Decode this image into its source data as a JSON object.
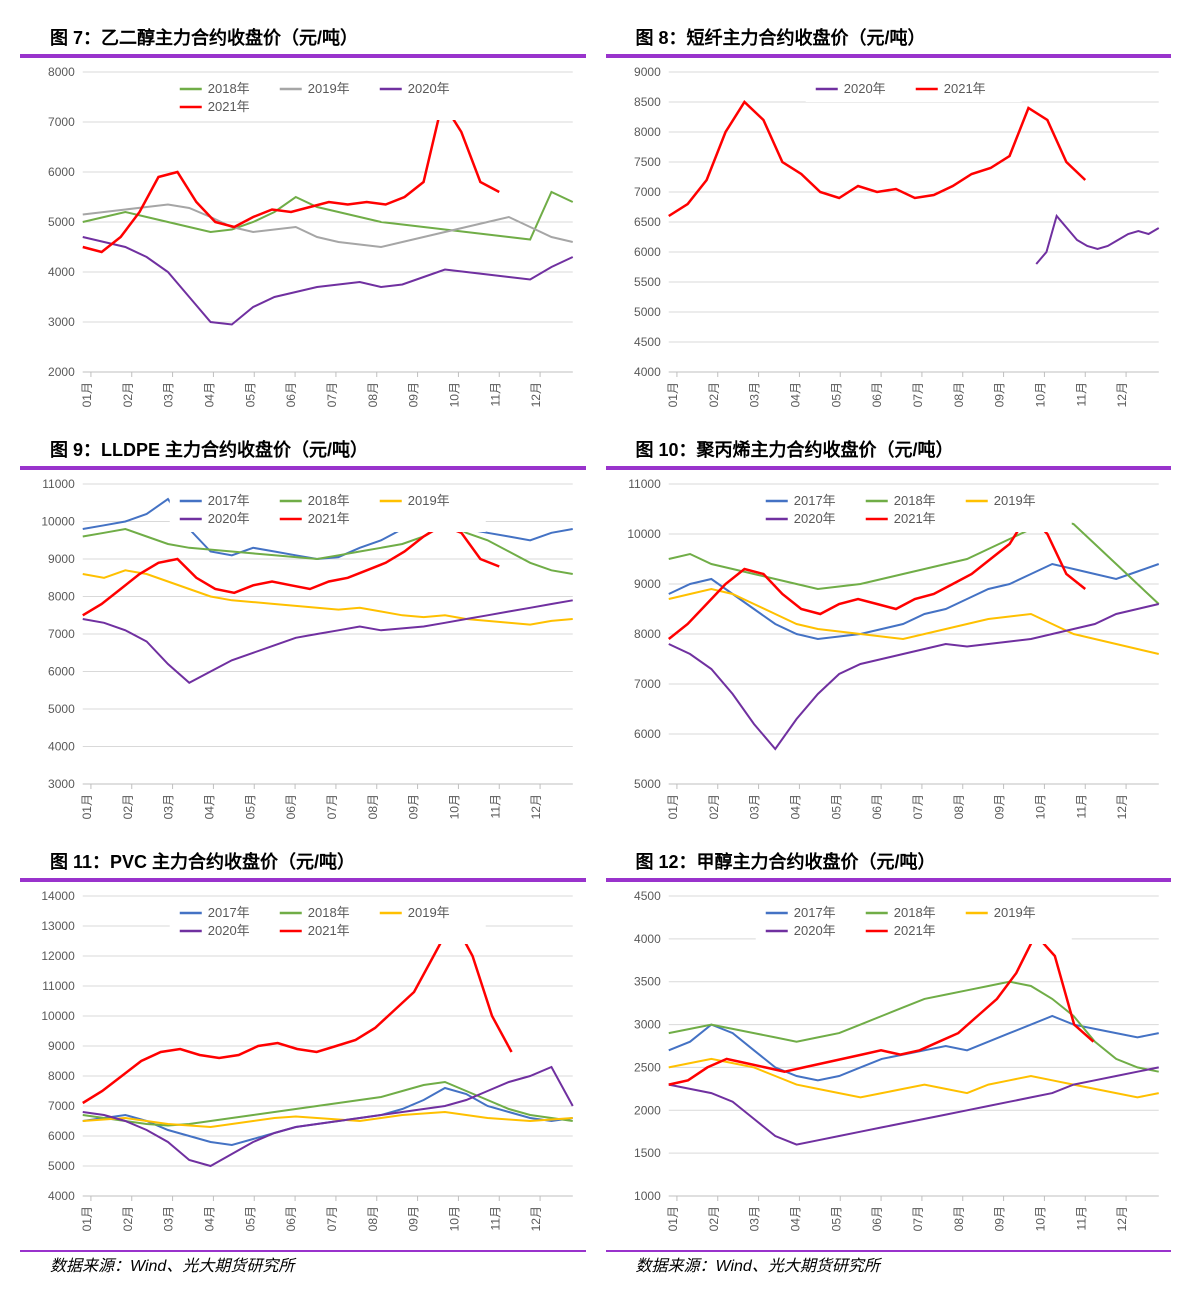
{
  "months": [
    "01月",
    "02月",
    "03月",
    "04月",
    "05月",
    "06月",
    "07月",
    "08月",
    "09月",
    "10月",
    "11月",
    "12月"
  ],
  "colors": {
    "y2017": "#4472c4",
    "y2018": "#70ad47",
    "y2019": "#ffc000",
    "y2020": "#7030a0",
    "y2021": "#ff0000",
    "y2019_grey": "#a6a6a6",
    "grid": "#d9d9d9",
    "axis": "#bfbfbf",
    "text": "#595959",
    "underline": "#9933cc"
  },
  "source_left": "数据来源：Wind、光大期货研究所",
  "source_right": "数据来源：Wind、光大期货研究所",
  "charts": [
    {
      "id": "c7",
      "title": "图 7：乙二醇主力合约收盘价（元/吨）",
      "ylim": [
        2000,
        8000
      ],
      "ystep": 1000,
      "legend": [
        {
          "label": "2018年",
          "color": "y2018"
        },
        {
          "label": "2019年",
          "color": "y2019_grey"
        },
        {
          "label": "2020年",
          "color": "y2020"
        },
        {
          "label": "2021年",
          "color": "y2021"
        }
      ],
      "series": {
        "y2018": {
          "start": 0,
          "end": 12,
          "data": [
            5000,
            5100,
            5200,
            5100,
            5000,
            4900,
            4800,
            4850,
            5000,
            5200,
            5500,
            5300,
            5200,
            5100,
            5000,
            4950,
            4900,
            4850,
            4800,
            4750,
            4700,
            4650,
            5600,
            5400
          ]
        },
        "y2019_grey": {
          "start": 0,
          "end": 12,
          "data": [
            5150,
            5200,
            5250,
            5300,
            5350,
            5280,
            5100,
            4900,
            4800,
            4850,
            4900,
            4700,
            4600,
            4550,
            4500,
            4600,
            4700,
            4800,
            4900,
            5000,
            5100,
            4900,
            4700,
            4600
          ]
        },
        "y2020": {
          "start": 0,
          "end": 12,
          "data": [
            4700,
            4600,
            4500,
            4300,
            4000,
            3500,
            3000,
            2950,
            3300,
            3500,
            3600,
            3700,
            3750,
            3800,
            3700,
            3750,
            3900,
            4050,
            4000,
            3950,
            3900,
            3850,
            4100,
            4300
          ]
        },
        "y2021": {
          "start": 0,
          "end": 10.2,
          "data": [
            4500,
            4400,
            4700,
            5200,
            5900,
            6000,
            5400,
            5000,
            4900,
            5100,
            5250,
            5200,
            5300,
            5400,
            5350,
            5400,
            5350,
            5500,
            5800,
            7400,
            6800,
            5800,
            5600
          ]
        }
      }
    },
    {
      "id": "c8",
      "title": "图 8：短纤主力合约收盘价（元/吨）",
      "ylim": [
        4000,
        9000
      ],
      "ystep": 500,
      "legend": [
        {
          "label": "2020年",
          "color": "y2020"
        },
        {
          "label": "2021年",
          "color": "y2021"
        }
      ],
      "series": {
        "y2020": {
          "start": 9,
          "end": 12,
          "data": [
            5800,
            6000,
            6600,
            6400,
            6200,
            6100,
            6050,
            6100,
            6200,
            6300,
            6350,
            6300,
            6400
          ]
        },
        "y2021": {
          "start": 0,
          "end": 10.2,
          "data": [
            6600,
            6800,
            7200,
            8000,
            8500,
            8200,
            7500,
            7300,
            7000,
            6900,
            7100,
            7000,
            7050,
            6900,
            6950,
            7100,
            7300,
            7400,
            7600,
            8400,
            8200,
            7500,
            7200
          ]
        }
      }
    },
    {
      "id": "c9",
      "title": "图 9：LLDPE 主力合约收盘价（元/吨）",
      "ylim": [
        3000,
        11000
      ],
      "ystep": 1000,
      "legend": [
        {
          "label": "2017年",
          "color": "y2017"
        },
        {
          "label": "2018年",
          "color": "y2018"
        },
        {
          "label": "2019年",
          "color": "y2019"
        },
        {
          "label": "2020年",
          "color": "y2020"
        },
        {
          "label": "2021年",
          "color": "y2021"
        }
      ],
      "series": {
        "y2017": {
          "start": 0,
          "end": 12,
          "data": [
            9800,
            9900,
            10000,
            10200,
            10600,
            9800,
            9200,
            9100,
            9300,
            9200,
            9100,
            9000,
            9050,
            9300,
            9500,
            9800,
            10000,
            10100,
            9800,
            9700,
            9600,
            9500,
            9700,
            9800
          ]
        },
        "y2018": {
          "start": 0,
          "end": 12,
          "data": [
            9600,
            9700,
            9800,
            9600,
            9400,
            9300,
            9250,
            9200,
            9150,
            9100,
            9050,
            9000,
            9100,
            9200,
            9300,
            9400,
            9600,
            10000,
            9700,
            9500,
            9200,
            8900,
            8700,
            8600
          ]
        },
        "y2019": {
          "start": 0,
          "end": 12,
          "data": [
            8600,
            8500,
            8700,
            8600,
            8400,
            8200,
            8000,
            7900,
            7850,
            7800,
            7750,
            7700,
            7650,
            7700,
            7600,
            7500,
            7450,
            7500,
            7400,
            7350,
            7300,
            7250,
            7350,
            7400
          ]
        },
        "y2020": {
          "start": 0,
          "end": 12,
          "data": [
            7400,
            7300,
            7100,
            6800,
            6200,
            5700,
            6000,
            6300,
            6500,
            6700,
            6900,
            7000,
            7100,
            7200,
            7100,
            7150,
            7200,
            7300,
            7400,
            7500,
            7600,
            7700,
            7800,
            7900
          ]
        },
        "y2021": {
          "start": 0,
          "end": 10.2,
          "data": [
            7500,
            7800,
            8200,
            8600,
            8900,
            9000,
            8500,
            8200,
            8100,
            8300,
            8400,
            8300,
            8200,
            8400,
            8500,
            8700,
            8900,
            9200,
            9600,
            9900,
            9700,
            9000,
            8800
          ]
        }
      }
    },
    {
      "id": "c10",
      "title": "图 10：聚丙烯主力合约收盘价（元/吨）",
      "ylim": [
        5000,
        11000
      ],
      "ystep": 1000,
      "legend": [
        {
          "label": "2017年",
          "color": "y2017"
        },
        {
          "label": "2018年",
          "color": "y2018"
        },
        {
          "label": "2019年",
          "color": "y2019"
        },
        {
          "label": "2020年",
          "color": "y2020"
        },
        {
          "label": "2021年",
          "color": "y2021"
        }
      ],
      "series": {
        "y2017": {
          "start": 0,
          "end": 12,
          "data": [
            8800,
            9000,
            9100,
            8800,
            8500,
            8200,
            8000,
            7900,
            7950,
            8000,
            8100,
            8200,
            8400,
            8500,
            8700,
            8900,
            9000,
            9200,
            9400,
            9300,
            9200,
            9100,
            9250,
            9400
          ]
        },
        "y2018": {
          "start": 0,
          "end": 12,
          "data": [
            9500,
            9600,
            9400,
            9300,
            9200,
            9100,
            9000,
            8900,
            8950,
            9000,
            9100,
            9200,
            9300,
            9400,
            9500,
            9700,
            9900,
            10100,
            10300,
            10200,
            9800,
            9400,
            9000,
            8600
          ]
        },
        "y2019": {
          "start": 0,
          "end": 12,
          "data": [
            8700,
            8800,
            8900,
            8800,
            8600,
            8400,
            8200,
            8100,
            8050,
            8000,
            7950,
            7900,
            8000,
            8100,
            8200,
            8300,
            8350,
            8400,
            8200,
            8000,
            7900,
            7800,
            7700,
            7600
          ]
        },
        "y2020": {
          "start": 0,
          "end": 12,
          "data": [
            7800,
            7600,
            7300,
            6800,
            6200,
            5700,
            6300,
            6800,
            7200,
            7400,
            7500,
            7600,
            7700,
            7800,
            7750,
            7800,
            7850,
            7900,
            8000,
            8100,
            8200,
            8400,
            8500,
            8600
          ]
        },
        "y2021": {
          "start": 0,
          "end": 10.2,
          "data": [
            7900,
            8200,
            8600,
            9000,
            9300,
            9200,
            8800,
            8500,
            8400,
            8600,
            8700,
            8600,
            8500,
            8700,
            8800,
            9000,
            9200,
            9500,
            9800,
            10400,
            10000,
            9200,
            8900
          ]
        }
      }
    },
    {
      "id": "c11",
      "title": "图 11：PVC 主力合约收盘价（元/吨）",
      "ylim": [
        4000,
        14000
      ],
      "ystep": 1000,
      "legend": [
        {
          "label": "2017年",
          "color": "y2017"
        },
        {
          "label": "2018年",
          "color": "y2018"
        },
        {
          "label": "2019年",
          "color": "y2019"
        },
        {
          "label": "2020年",
          "color": "y2020"
        },
        {
          "label": "2021年",
          "color": "y2021"
        }
      ],
      "series": {
        "y2017": {
          "start": 0,
          "end": 12,
          "data": [
            6500,
            6600,
            6700,
            6500,
            6200,
            6000,
            5800,
            5700,
            5900,
            6100,
            6300,
            6400,
            6500,
            6600,
            6700,
            6900,
            7200,
            7600,
            7400,
            7000,
            6800,
            6600,
            6500,
            6600
          ]
        },
        "y2018": {
          "start": 0,
          "end": 12,
          "data": [
            6700,
            6600,
            6500,
            6400,
            6350,
            6400,
            6500,
            6600,
            6700,
            6800,
            6900,
            7000,
            7100,
            7200,
            7300,
            7500,
            7700,
            7800,
            7500,
            7200,
            6900,
            6700,
            6600,
            6500
          ]
        },
        "y2019": {
          "start": 0,
          "end": 12,
          "data": [
            6500,
            6550,
            6600,
            6500,
            6400,
            6350,
            6300,
            6400,
            6500,
            6600,
            6650,
            6600,
            6550,
            6500,
            6600,
            6700,
            6750,
            6800,
            6700,
            6600,
            6550,
            6500,
            6550,
            6600
          ]
        },
        "y2020": {
          "start": 0,
          "end": 12,
          "data": [
            6800,
            6700,
            6500,
            6200,
            5800,
            5200,
            5000,
            5400,
            5800,
            6100,
            6300,
            6400,
            6500,
            6600,
            6700,
            6800,
            6900,
            7000,
            7200,
            7500,
            7800,
            8000,
            8300,
            7000
          ]
        },
        "y2021": {
          "start": 0,
          "end": 10.5,
          "data": [
            7100,
            7500,
            8000,
            8500,
            8800,
            8900,
            8700,
            8600,
            8700,
            9000,
            9100,
            8900,
            8800,
            9000,
            9200,
            9600,
            10200,
            10800,
            12000,
            13200,
            12000,
            10000,
            8800
          ]
        }
      }
    },
    {
      "id": "c12",
      "title": "图 12：甲醇主力合约收盘价（元/吨）",
      "ylim": [
        1000,
        4500
      ],
      "ystep": 500,
      "legend": [
        {
          "label": "2017年",
          "color": "y2017"
        },
        {
          "label": "2018年",
          "color": "y2018"
        },
        {
          "label": "2019年",
          "color": "y2019"
        },
        {
          "label": "2020年",
          "color": "y2020"
        },
        {
          "label": "2021年",
          "color": "y2021"
        }
      ],
      "series": {
        "y2017": {
          "start": 0,
          "end": 12,
          "data": [
            2700,
            2800,
            3000,
            2900,
            2700,
            2500,
            2400,
            2350,
            2400,
            2500,
            2600,
            2650,
            2700,
            2750,
            2700,
            2800,
            2900,
            3000,
            3100,
            3000,
            2950,
            2900,
            2850,
            2900
          ]
        },
        "y2018": {
          "start": 0,
          "end": 12,
          "data": [
            2900,
            2950,
            3000,
            2950,
            2900,
            2850,
            2800,
            2850,
            2900,
            3000,
            3100,
            3200,
            3300,
            3350,
            3400,
            3450,
            3500,
            3450,
            3300,
            3100,
            2800,
            2600,
            2500,
            2450
          ]
        },
        "y2019": {
          "start": 0,
          "end": 12,
          "data": [
            2500,
            2550,
            2600,
            2550,
            2500,
            2400,
            2300,
            2250,
            2200,
            2150,
            2200,
            2250,
            2300,
            2250,
            2200,
            2300,
            2350,
            2400,
            2350,
            2300,
            2250,
            2200,
            2150,
            2200
          ]
        },
        "y2020": {
          "start": 0,
          "end": 12,
          "data": [
            2300,
            2250,
            2200,
            2100,
            1900,
            1700,
            1600,
            1650,
            1700,
            1750,
            1800,
            1850,
            1900,
            1950,
            2000,
            2050,
            2100,
            2150,
            2200,
            2300,
            2350,
            2400,
            2450,
            2500
          ]
        },
        "y2021": {
          "start": 0,
          "end": 10.4,
          "data": [
            2300,
            2350,
            2500,
            2600,
            2550,
            2500,
            2450,
            2500,
            2550,
            2600,
            2650,
            2700,
            2650,
            2700,
            2800,
            2900,
            3100,
            3300,
            3600,
            4050,
            3800,
            3000,
            2800
          ]
        }
      }
    }
  ]
}
